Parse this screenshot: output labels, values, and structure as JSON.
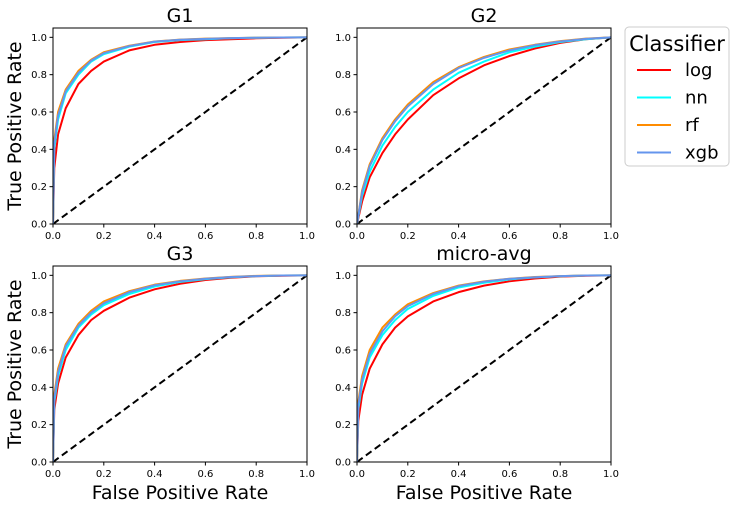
{
  "figure": {
    "shared_ylabel": "True Positive Rate",
    "shared_xlabel": "False Positive Rate"
  },
  "legend": {
    "title": "Classifier",
    "placement": "right, outside axes",
    "entries": [
      {
        "name": "log",
        "color": "#ff0000"
      },
      {
        "name": "nn",
        "color": "#00ffff"
      },
      {
        "name": "rf",
        "color": "#ff8c00"
      },
      {
        "name": "xgb",
        "color": "#6495ed"
      }
    ]
  },
  "chart_data": [
    {
      "type": "line",
      "title": "G1",
      "xlabel": "",
      "ylabel": "True Positive Rate",
      "xlim": [
        0,
        1
      ],
      "ylim": [
        0,
        1.05
      ],
      "xticks": [
        "0.0",
        "0.2",
        "0.4",
        "0.6",
        "0.8",
        "1.0"
      ],
      "yticks": [
        "0.0",
        "0.2",
        "0.4",
        "0.6",
        "0.8",
        "1.0"
      ],
      "grid": false,
      "diagonal": {
        "x": [
          0,
          1
        ],
        "y": [
          0,
          1
        ],
        "style": "dashed",
        "color": "#000000"
      },
      "series": [
        {
          "name": "log",
          "color": "#ff0000",
          "x": [
            0,
            0.005,
            0.02,
            0.05,
            0.1,
            0.15,
            0.2,
            0.3,
            0.4,
            0.5,
            0.6,
            0.7,
            0.8,
            0.9,
            1.0
          ],
          "y": [
            0,
            0.3,
            0.48,
            0.62,
            0.75,
            0.82,
            0.87,
            0.93,
            0.96,
            0.975,
            0.985,
            0.99,
            0.995,
            0.998,
            1.0
          ]
        },
        {
          "name": "nn",
          "color": "#00ffff",
          "x": [
            0,
            0.005,
            0.02,
            0.05,
            0.1,
            0.15,
            0.2,
            0.3,
            0.4,
            0.5,
            0.6,
            0.7,
            0.8,
            0.9,
            1.0
          ],
          "y": [
            0,
            0.4,
            0.56,
            0.7,
            0.8,
            0.87,
            0.91,
            0.95,
            0.975,
            0.985,
            0.99,
            0.995,
            0.998,
            0.999,
            1.0
          ]
        },
        {
          "name": "rf",
          "color": "#ff8c00",
          "x": [
            0,
            0.005,
            0.02,
            0.05,
            0.1,
            0.15,
            0.2,
            0.3,
            0.4,
            0.5,
            0.6,
            0.7,
            0.8,
            0.9,
            1.0
          ],
          "y": [
            0,
            0.45,
            0.6,
            0.72,
            0.82,
            0.88,
            0.92,
            0.955,
            0.978,
            0.988,
            0.993,
            0.996,
            0.998,
            0.999,
            1.0
          ]
        },
        {
          "name": "xgb",
          "color": "#6495ed",
          "x": [
            0,
            0.005,
            0.02,
            0.05,
            0.1,
            0.15,
            0.2,
            0.3,
            0.4,
            0.5,
            0.6,
            0.7,
            0.8,
            0.9,
            1.0
          ],
          "y": [
            0,
            0.43,
            0.58,
            0.71,
            0.81,
            0.875,
            0.915,
            0.953,
            0.977,
            0.987,
            0.992,
            0.996,
            0.998,
            0.999,
            1.0
          ]
        }
      ]
    },
    {
      "type": "line",
      "title": "G2",
      "xlabel": "",
      "ylabel": "",
      "xlim": [
        0,
        1
      ],
      "ylim": [
        0,
        1.05
      ],
      "xticks": [
        "0.0",
        "0.2",
        "0.4",
        "0.6",
        "0.8",
        "1.0"
      ],
      "yticks": [
        "0.0",
        "0.2",
        "0.4",
        "0.6",
        "0.8",
        "1.0"
      ],
      "grid": false,
      "diagonal": {
        "x": [
          0,
          1
        ],
        "y": [
          0,
          1
        ],
        "style": "dashed",
        "color": "#000000"
      },
      "series": [
        {
          "name": "log",
          "color": "#ff0000",
          "x": [
            0,
            0.02,
            0.05,
            0.1,
            0.15,
            0.2,
            0.3,
            0.4,
            0.5,
            0.6,
            0.7,
            0.8,
            0.9,
            1.0
          ],
          "y": [
            0,
            0.12,
            0.25,
            0.38,
            0.48,
            0.56,
            0.69,
            0.78,
            0.85,
            0.9,
            0.94,
            0.97,
            0.99,
            1.0
          ]
        },
        {
          "name": "nn",
          "color": "#00ffff",
          "x": [
            0,
            0.02,
            0.05,
            0.1,
            0.15,
            0.2,
            0.3,
            0.4,
            0.5,
            0.6,
            0.7,
            0.8,
            0.9,
            1.0
          ],
          "y": [
            0,
            0.15,
            0.28,
            0.42,
            0.52,
            0.6,
            0.72,
            0.81,
            0.87,
            0.92,
            0.95,
            0.975,
            0.99,
            1.0
          ]
        },
        {
          "name": "rf",
          "color": "#ff8c00",
          "x": [
            0,
            0.02,
            0.05,
            0.1,
            0.15,
            0.2,
            0.3,
            0.4,
            0.5,
            0.6,
            0.7,
            0.8,
            0.9,
            1.0
          ],
          "y": [
            0,
            0.18,
            0.32,
            0.46,
            0.56,
            0.64,
            0.76,
            0.84,
            0.895,
            0.935,
            0.96,
            0.98,
            0.993,
            1.0
          ]
        },
        {
          "name": "xgb",
          "color": "#6495ed",
          "x": [
            0,
            0.02,
            0.05,
            0.1,
            0.15,
            0.2,
            0.3,
            0.4,
            0.5,
            0.6,
            0.7,
            0.8,
            0.9,
            1.0
          ],
          "y": [
            0,
            0.17,
            0.31,
            0.45,
            0.55,
            0.63,
            0.75,
            0.835,
            0.89,
            0.93,
            0.958,
            0.978,
            0.992,
            1.0
          ]
        }
      ]
    },
    {
      "type": "line",
      "title": "G3",
      "xlabel": "False Positive Rate",
      "ylabel": "True Positive Rate",
      "xlim": [
        0,
        1
      ],
      "ylim": [
        0,
        1.05
      ],
      "xticks": [
        "0.0",
        "0.2",
        "0.4",
        "0.6",
        "0.8",
        "1.0"
      ],
      "yticks": [
        "0.0",
        "0.2",
        "0.4",
        "0.6",
        "0.8",
        "1.0"
      ],
      "grid": false,
      "diagonal": {
        "x": [
          0,
          1
        ],
        "y": [
          0,
          1
        ],
        "style": "dashed",
        "color": "#000000"
      },
      "series": [
        {
          "name": "log",
          "color": "#ff0000",
          "x": [
            0,
            0.005,
            0.02,
            0.05,
            0.1,
            0.15,
            0.2,
            0.3,
            0.4,
            0.5,
            0.6,
            0.7,
            0.8,
            0.9,
            1.0
          ],
          "y": [
            0,
            0.28,
            0.42,
            0.56,
            0.68,
            0.76,
            0.81,
            0.88,
            0.925,
            0.955,
            0.975,
            0.987,
            0.995,
            0.998,
            1.0
          ]
        },
        {
          "name": "nn",
          "color": "#00ffff",
          "x": [
            0,
            0.005,
            0.02,
            0.05,
            0.1,
            0.15,
            0.2,
            0.3,
            0.4,
            0.5,
            0.6,
            0.7,
            0.8,
            0.9,
            1.0
          ],
          "y": [
            0,
            0.32,
            0.46,
            0.6,
            0.72,
            0.79,
            0.84,
            0.9,
            0.94,
            0.965,
            0.98,
            0.99,
            0.996,
            0.999,
            1.0
          ]
        },
        {
          "name": "rf",
          "color": "#ff8c00",
          "x": [
            0,
            0.005,
            0.02,
            0.05,
            0.1,
            0.15,
            0.2,
            0.3,
            0.4,
            0.5,
            0.6,
            0.7,
            0.8,
            0.9,
            1.0
          ],
          "y": [
            0,
            0.36,
            0.5,
            0.63,
            0.74,
            0.81,
            0.86,
            0.915,
            0.95,
            0.97,
            0.983,
            0.992,
            0.997,
            0.999,
            1.0
          ]
        },
        {
          "name": "xgb",
          "color": "#6495ed",
          "x": [
            0,
            0.005,
            0.02,
            0.05,
            0.1,
            0.15,
            0.2,
            0.3,
            0.4,
            0.5,
            0.6,
            0.7,
            0.8,
            0.9,
            1.0
          ],
          "y": [
            0,
            0.34,
            0.48,
            0.62,
            0.73,
            0.8,
            0.85,
            0.91,
            0.947,
            0.968,
            0.982,
            0.991,
            0.996,
            0.999,
            1.0
          ]
        }
      ]
    },
    {
      "type": "line",
      "title": "micro-avg",
      "xlabel": "False Positive Rate",
      "ylabel": "",
      "xlim": [
        0,
        1
      ],
      "ylim": [
        0,
        1.05
      ],
      "xticks": [
        "0.0",
        "0.2",
        "0.4",
        "0.6",
        "0.8",
        "1.0"
      ],
      "yticks": [
        "0.0",
        "0.2",
        "0.4",
        "0.6",
        "0.8",
        "1.0"
      ],
      "grid": false,
      "diagonal": {
        "x": [
          0,
          1
        ],
        "y": [
          0,
          1
        ],
        "style": "dashed",
        "color": "#000000"
      },
      "series": [
        {
          "name": "log",
          "color": "#ff0000",
          "x": [
            0,
            0.005,
            0.02,
            0.05,
            0.1,
            0.15,
            0.2,
            0.3,
            0.4,
            0.5,
            0.6,
            0.7,
            0.8,
            0.9,
            1.0
          ],
          "y": [
            0,
            0.22,
            0.36,
            0.5,
            0.63,
            0.72,
            0.78,
            0.86,
            0.91,
            0.945,
            0.968,
            0.983,
            0.993,
            0.998,
            1.0
          ]
        },
        {
          "name": "nn",
          "color": "#00ffff",
          "x": [
            0,
            0.005,
            0.02,
            0.05,
            0.1,
            0.15,
            0.2,
            0.3,
            0.4,
            0.5,
            0.6,
            0.7,
            0.8,
            0.9,
            1.0
          ],
          "y": [
            0,
            0.28,
            0.42,
            0.56,
            0.68,
            0.76,
            0.82,
            0.89,
            0.935,
            0.96,
            0.978,
            0.989,
            0.995,
            0.999,
            1.0
          ]
        },
        {
          "name": "rf",
          "color": "#ff8c00",
          "x": [
            0,
            0.005,
            0.02,
            0.05,
            0.1,
            0.15,
            0.2,
            0.3,
            0.4,
            0.5,
            0.6,
            0.7,
            0.8,
            0.9,
            1.0
          ],
          "y": [
            0,
            0.32,
            0.46,
            0.6,
            0.72,
            0.79,
            0.845,
            0.905,
            0.945,
            0.968,
            0.982,
            0.991,
            0.996,
            0.999,
            1.0
          ]
        },
        {
          "name": "xgb",
          "color": "#6495ed",
          "x": [
            0,
            0.005,
            0.02,
            0.05,
            0.1,
            0.15,
            0.2,
            0.3,
            0.4,
            0.5,
            0.6,
            0.7,
            0.8,
            0.9,
            1.0
          ],
          "y": [
            0,
            0.3,
            0.44,
            0.58,
            0.7,
            0.78,
            0.835,
            0.9,
            0.942,
            0.966,
            0.981,
            0.99,
            0.996,
            0.999,
            1.0
          ]
        }
      ]
    }
  ]
}
